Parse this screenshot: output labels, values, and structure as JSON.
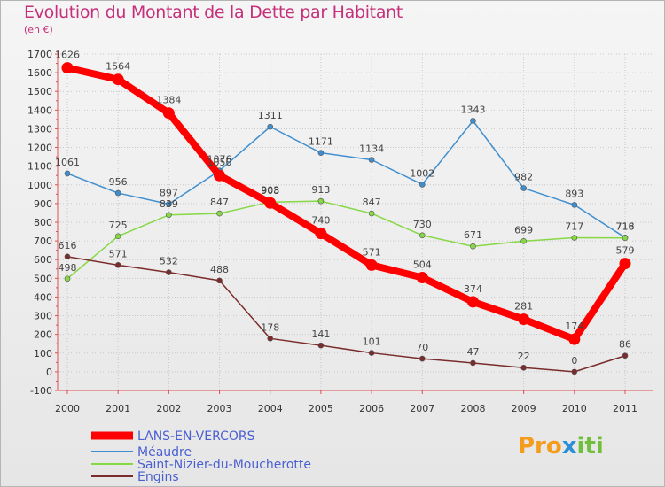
{
  "header": {
    "title": "Evolution du Montant de la Dette par Habitant",
    "unit": "(en €)"
  },
  "logo": {
    "text": "Proxiti"
  },
  "chart_data": {
    "type": "line",
    "title": "Evolution du Montant de la Dette par Habitant",
    "ylabel": "(en €)",
    "xlabel": "",
    "x": [
      "2000",
      "2001",
      "2002",
      "2003",
      "2004",
      "2005",
      "2006",
      "2007",
      "2008",
      "2009",
      "2010",
      "2011"
    ],
    "ylim": [
      -100,
      1700
    ],
    "yticks": [
      -100,
      0,
      100,
      200,
      300,
      400,
      500,
      600,
      700,
      800,
      900,
      1000,
      1100,
      1200,
      1300,
      1400,
      1500,
      1600,
      1700
    ],
    "grid": true,
    "legend_placement": "bottom-left",
    "series": [
      {
        "name": "LANS-EN-VERCORS",
        "color": "#ff0000",
        "values": [
          1626,
          1564,
          1384,
          1050,
          903,
          740,
          571,
          504,
          374,
          281,
          174,
          579
        ]
      },
      {
        "name": "Méaudre",
        "color": "#3f8fd0",
        "values": [
          1061,
          956,
          897,
          1076,
          1311,
          1171,
          1134,
          1002,
          1343,
          982,
          893,
          718
        ]
      },
      {
        "name": "Saint-Nizier-du-Moucherotte",
        "color": "#86d845",
        "values": [
          498,
          725,
          839,
          847,
          908,
          913,
          847,
          730,
          671,
          699,
          717,
          716
        ]
      },
      {
        "name": "Engins",
        "color": "#7a2b2b",
        "values": [
          616,
          571,
          532,
          488,
          178,
          141,
          101,
          70,
          47,
          22,
          0,
          86
        ]
      }
    ]
  }
}
